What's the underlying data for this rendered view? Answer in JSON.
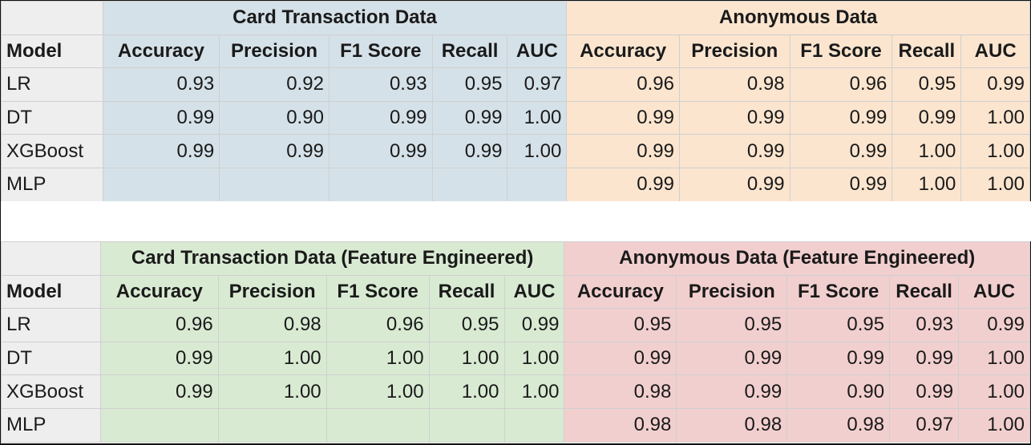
{
  "top_table": {
    "model_header": "Model",
    "group_left": "Card Transaction Data",
    "group_right": "Anonymous Data",
    "columns": [
      "Accuracy",
      "Precision",
      "F1 Score",
      "Recall",
      "AUC"
    ],
    "rows": [
      {
        "model": "LR",
        "left": [
          "0.93",
          "0.92",
          "0.93",
          "0.95",
          "0.97"
        ],
        "right": [
          "0.96",
          "0.98",
          "0.96",
          "0.95",
          "0.99"
        ]
      },
      {
        "model": "DT",
        "left": [
          "0.99",
          "0.90",
          "0.99",
          "0.99",
          "1.00"
        ],
        "right": [
          "0.99",
          "0.99",
          "0.99",
          "0.99",
          "1.00"
        ]
      },
      {
        "model": "XGBoost",
        "left": [
          "0.99",
          "0.99",
          "0.99",
          "0.99",
          "1.00"
        ],
        "right": [
          "0.99",
          "0.99",
          "0.99",
          "1.00",
          "1.00"
        ]
      },
      {
        "model": "MLP",
        "left": [
          "",
          "",
          "",
          "",
          ""
        ],
        "right": [
          "0.99",
          "0.99",
          "0.99",
          "1.00",
          "1.00"
        ]
      }
    ]
  },
  "bottom_table": {
    "model_header": "Model",
    "group_left": "Card Transaction Data (Feature Engineered)",
    "group_right": "Anonymous Data (Feature Engineered)",
    "columns": [
      "Accuracy",
      "Precision",
      "F1 Score",
      "Recall",
      "AUC"
    ],
    "rows": [
      {
        "model": "LR",
        "left": [
          "0.96",
          "0.98",
          "0.96",
          "0.95",
          "0.99"
        ],
        "right": [
          "0.95",
          "0.95",
          "0.95",
          "0.93",
          "0.99"
        ]
      },
      {
        "model": "DT",
        "left": [
          "0.99",
          "1.00",
          "1.00",
          "1.00",
          "1.00"
        ],
        "right": [
          "0.99",
          "0.99",
          "0.99",
          "0.99",
          "1.00"
        ]
      },
      {
        "model": "XGBoost",
        "left": [
          "0.99",
          "1.00",
          "1.00",
          "1.00",
          "1.00"
        ],
        "right": [
          "0.98",
          "0.99",
          "0.90",
          "0.99",
          "1.00"
        ]
      },
      {
        "model": "MLP",
        "left": [
          "",
          "",
          "",
          "",
          ""
        ],
        "right": [
          "0.98",
          "0.98",
          "0.98",
          "0.97",
          "1.00"
        ]
      }
    ]
  },
  "colors": {
    "card_transaction": "#d5e1e8",
    "anonymous": "#fbe5cf",
    "card_transaction_fe": "#d9ead3",
    "anonymous_fe": "#f2cfcf",
    "model_column": "#eeeeee"
  }
}
